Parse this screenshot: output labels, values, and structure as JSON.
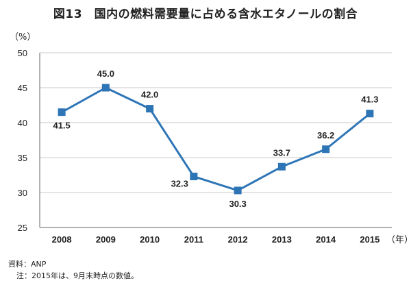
{
  "chart_data": {
    "type": "line",
    "title": "図13　国内の燃料需要量に占める含水エタノールの割合",
    "y_unit": "（%）",
    "x_unit": "（年）",
    "categories": [
      "2008",
      "2009",
      "2010",
      "2011",
      "2012",
      "2013",
      "2014",
      "2015"
    ],
    "series": [
      {
        "values": [
          41.5,
          45.0,
          42.0,
          32.3,
          30.3,
          33.7,
          36.2,
          41.3
        ],
        "labels": [
          "41.5",
          "45.0",
          "42.0",
          "32.3",
          "30.3",
          "33.7",
          "36.2",
          "41.3"
        ],
        "color": "#2e75b6"
      }
    ],
    "ylim": [
      25,
      50
    ],
    "yticks": [
      25,
      30,
      35,
      40,
      45,
      50
    ],
    "grid": true,
    "legend": "none"
  },
  "source": "資料：ANP",
  "note": "注：2015年は、9月末時点の数値。"
}
